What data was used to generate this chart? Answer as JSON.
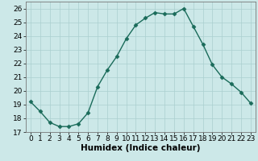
{
  "x": [
    0,
    1,
    2,
    3,
    4,
    5,
    6,
    7,
    8,
    9,
    10,
    11,
    12,
    13,
    14,
    15,
    16,
    17,
    18,
    19,
    20,
    21,
    22,
    23
  ],
  "y": [
    19.2,
    18.5,
    17.7,
    17.4,
    17.4,
    17.6,
    18.4,
    20.3,
    21.5,
    22.5,
    23.8,
    24.8,
    25.3,
    25.7,
    25.6,
    25.6,
    26.0,
    24.7,
    23.4,
    21.9,
    21.0,
    20.5,
    19.9,
    19.1
  ],
  "line_color": "#1a6b5a",
  "marker": "D",
  "marker_size": 2.5,
  "bg_color": "#cce8e8",
  "grid_color": "#aacfcf",
  "xlabel": "Humidex (Indice chaleur)",
  "xlim": [
    -0.5,
    23.5
  ],
  "ylim": [
    17,
    26.5
  ],
  "yticks": [
    17,
    18,
    19,
    20,
    21,
    22,
    23,
    24,
    25,
    26
  ],
  "xticks": [
    0,
    1,
    2,
    3,
    4,
    5,
    6,
    7,
    8,
    9,
    10,
    11,
    12,
    13,
    14,
    15,
    16,
    17,
    18,
    19,
    20,
    21,
    22,
    23
  ],
  "tick_fontsize": 6.5,
  "xlabel_fontsize": 7.5
}
